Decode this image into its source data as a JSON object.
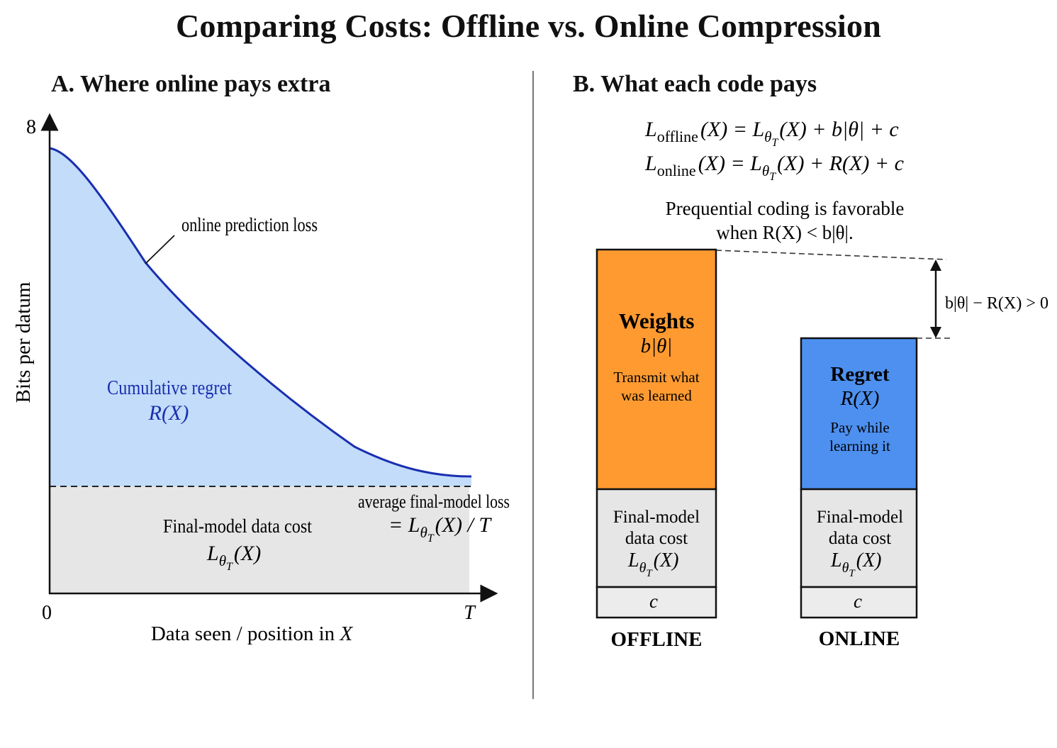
{
  "title": "Comparing Costs: Offline vs. Online Compression",
  "colors": {
    "curve": "#1a2fb0",
    "regret_fill": "#c2dcfa",
    "data_fill": "#e6e6e6",
    "weights_fill": "#ff9a30",
    "regret_box_fill": "#4d90f0",
    "regret_text": "#1a2fb0"
  },
  "panelA": {
    "heading": "A. Where online pays extra",
    "y_axis_label": "Bits per datum",
    "y_axis_top_tick": "8",
    "x_axis_start_tick": "0",
    "x_axis_end_tick": "T",
    "x_axis_label_text": "Data seen / position in ",
    "x_axis_label_var": "X",
    "curve_label": "online prediction loss",
    "regret_label_1": "Cumulative regret",
    "regret_label_2": "R(X)",
    "data_cost_label_1": "Final-model data cost",
    "data_cost_label_2": "L",
    "data_cost_label_2_sub": "θ",
    "data_cost_label_2_subsub": "T",
    "data_cost_label_2_tail": "(X)",
    "avg_label_1": "average final-model loss",
    "avg_label_2_pre": "= L",
    "avg_label_2_tail": "(X) / T"
  },
  "panelB": {
    "heading": "B. What each code pays",
    "eq_offline": {
      "lhs": "L",
      "lhs_sub": "offline",
      "rest": "(X) = L",
      "rest_sub": "θ",
      "rest_subsub": "T",
      "tail": "(X) + b|θ| + c"
    },
    "eq_online": {
      "lhs": "L",
      "lhs_sub": "online",
      "rest": "(X) = L",
      "rest_sub": "θ",
      "rest_subsub": "T",
      "tail": "(X) + R(X) + c"
    },
    "favorable_line_1": "Prequential coding is favorable",
    "favorable_line_2": "when R(X) < b|θ|.",
    "gap_label": "b|θ| − R(X) > 0",
    "offline_bar": {
      "top_title": "Weights",
      "top_formula": "b|θ|",
      "top_note_1": "Transmit what",
      "top_note_2": "was learned",
      "mid_1": "Final-model",
      "mid_2": "data cost",
      "mid_formula": "L",
      "mid_formula_sub": "θ",
      "mid_formula_subsub": "T",
      "mid_formula_tail": "(X)",
      "bottom": "c",
      "label": "OFFLINE"
    },
    "online_bar": {
      "top_title": "Regret",
      "top_formula": "R(X)",
      "top_note_1": "Pay while",
      "top_note_2": "learning it",
      "mid_1": "Final-model",
      "mid_2": "data cost",
      "mid_formula": "L",
      "mid_formula_sub": "θ",
      "mid_formula_subsub": "T",
      "mid_formula_tail": "(X)",
      "bottom": "c",
      "label": "ONLINE"
    }
  }
}
